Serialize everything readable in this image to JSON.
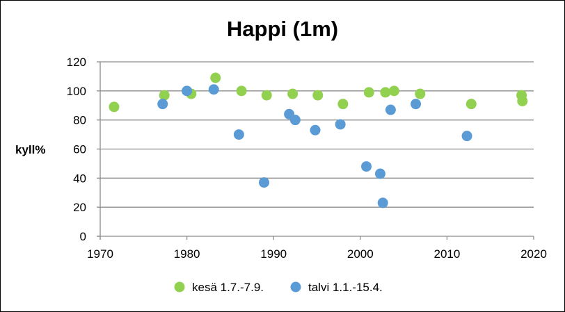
{
  "chart_data": {
    "type": "scatter",
    "title": "Happi (1m)",
    "xlabel": "",
    "ylabel": "kyll%",
    "xlim": [
      1970,
      2020
    ],
    "ylim": [
      0,
      120
    ],
    "x_ticks": [
      1970,
      1980,
      1990,
      2000,
      2010,
      2020
    ],
    "y_ticks": [
      0,
      20,
      40,
      60,
      80,
      100,
      120
    ],
    "grid": "horizontal",
    "legend_position": "bottom",
    "series": [
      {
        "name": "kesä 1.7.-7.9.",
        "color": "#92D050",
        "points": [
          {
            "x": 1971.6,
            "y": 89
          },
          {
            "x": 1977.4,
            "y": 97
          },
          {
            "x": 1980.5,
            "y": 98
          },
          {
            "x": 1983.3,
            "y": 109
          },
          {
            "x": 1986.3,
            "y": 100
          },
          {
            "x": 1989.2,
            "y": 97
          },
          {
            "x": 1992.2,
            "y": 98
          },
          {
            "x": 1995.1,
            "y": 97
          },
          {
            "x": 1998.0,
            "y": 91
          },
          {
            "x": 2001.0,
            "y": 99
          },
          {
            "x": 2002.9,
            "y": 99
          },
          {
            "x": 2003.9,
            "y": 100
          },
          {
            "x": 2006.9,
            "y": 98
          },
          {
            "x": 2012.8,
            "y": 91
          },
          {
            "x": 2018.6,
            "y": 97
          },
          {
            "x": 2018.7,
            "y": 93
          }
        ]
      },
      {
        "name": "talvi 1.1.-15.4.",
        "color": "#5B9BD5",
        "points": [
          {
            "x": 1977.2,
            "y": 91
          },
          {
            "x": 1980.0,
            "y": 100
          },
          {
            "x": 1983.1,
            "y": 101
          },
          {
            "x": 1986.0,
            "y": 70
          },
          {
            "x": 1988.9,
            "y": 37
          },
          {
            "x": 1991.8,
            "y": 84
          },
          {
            "x": 1992.5,
            "y": 80
          },
          {
            "x": 1994.8,
            "y": 73
          },
          {
            "x": 1997.7,
            "y": 77
          },
          {
            "x": 2000.7,
            "y": 48
          },
          {
            "x": 2002.3,
            "y": 43
          },
          {
            "x": 2002.6,
            "y": 23
          },
          {
            "x": 2003.5,
            "y": 87
          },
          {
            "x": 2006.4,
            "y": 91
          },
          {
            "x": 2012.3,
            "y": 69
          }
        ]
      }
    ]
  }
}
